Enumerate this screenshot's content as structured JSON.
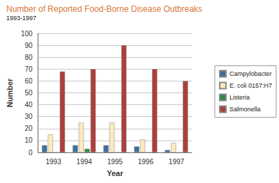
{
  "chart_data": {
    "type": "bar",
    "title": "Number of Reported Food-Borne Disease Outbreaks",
    "subtitle": "1993-1997",
    "x_label": "Year",
    "y_label": "Number",
    "categories": [
      "1993",
      "1994",
      "1995",
      "1996",
      "1997"
    ],
    "series": [
      {
        "name": "Campylobacter",
        "color": "#3d6f9c",
        "values": [
          6,
          6,
          6,
          5,
          2
        ]
      },
      {
        "name": "E. coli 0157:H7",
        "color": "#fbe9bf",
        "values": [
          15,
          25,
          25,
          11,
          8
        ]
      },
      {
        "name": "Listeria",
        "color": "#2e8b4a",
        "values": [
          0,
          3,
          0,
          0,
          0
        ]
      },
      {
        "name": "Salmonella",
        "color": "#ad3f3b",
        "values": [
          68,
          70,
          90,
          70,
          60
        ]
      }
    ],
    "ylim": [
      0,
      100
    ],
    "yticks": [
      0,
      10,
      20,
      30,
      40,
      50,
      60,
      70,
      80,
      90,
      100
    ],
    "grid": true,
    "legend": "right"
  }
}
